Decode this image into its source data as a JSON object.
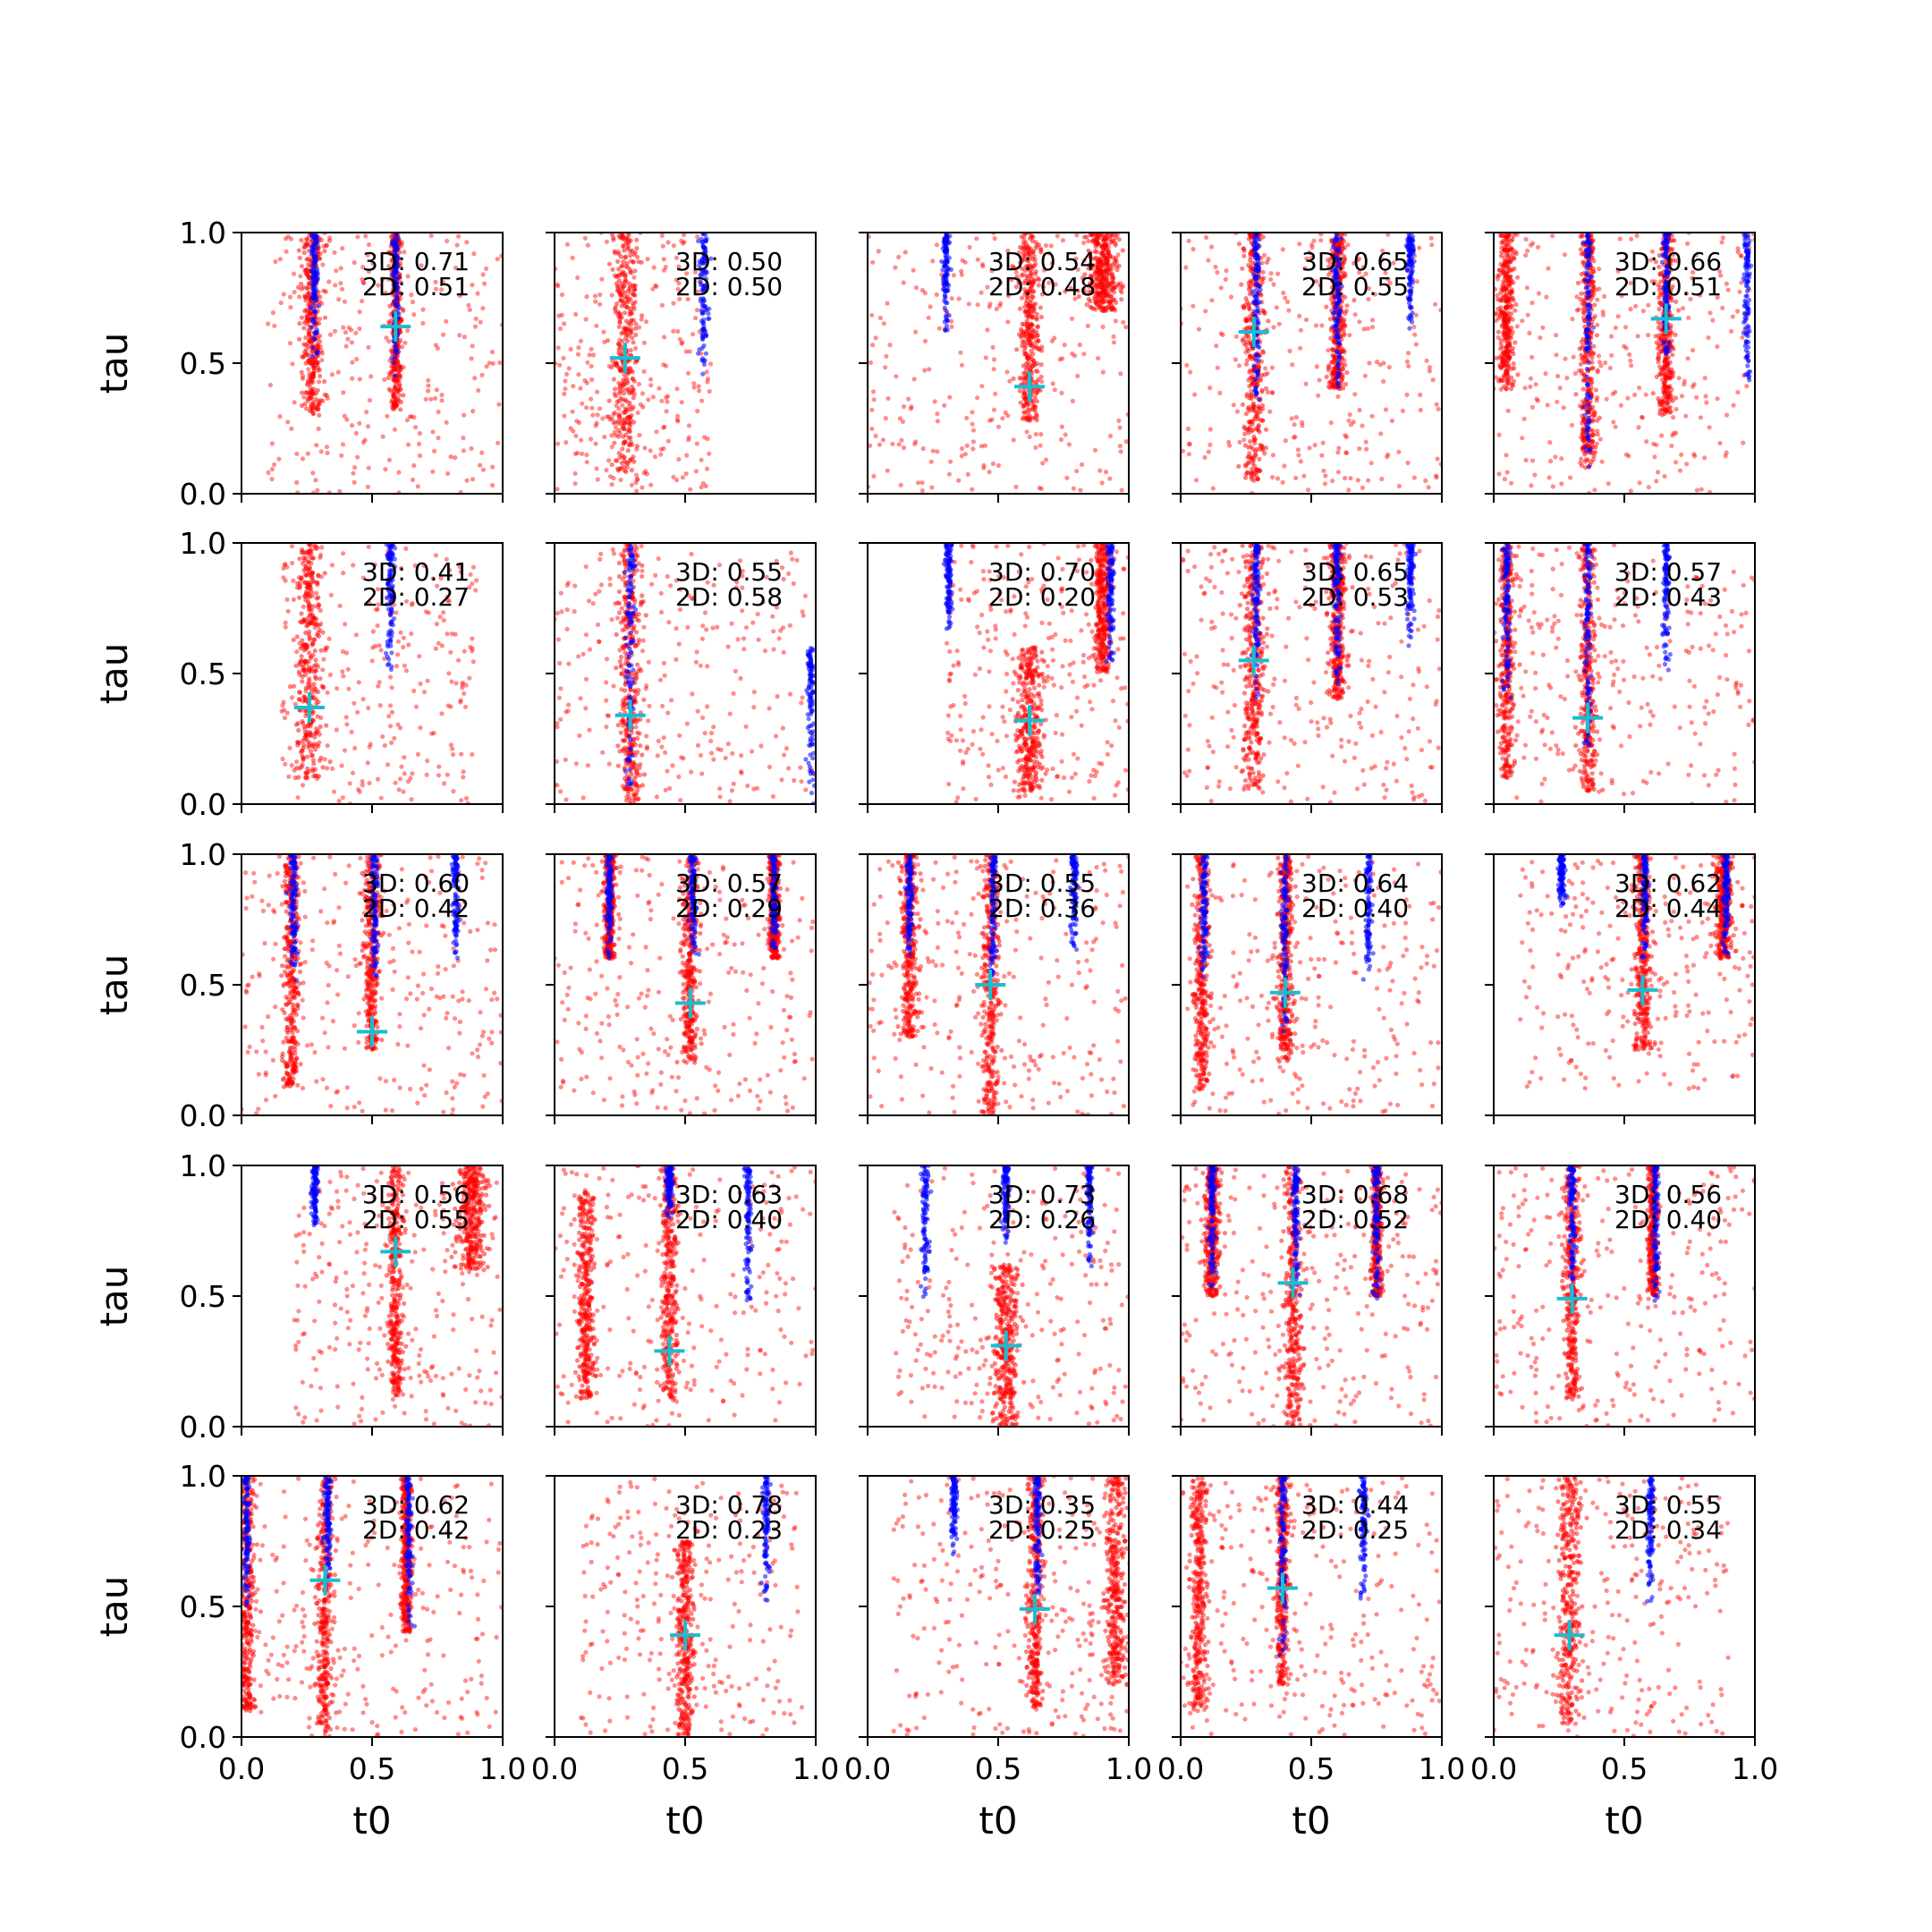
{
  "chart_data": {
    "type": "scatter",
    "layout": {
      "rows": 5,
      "cols": 5,
      "sharex": true,
      "sharey": true
    },
    "xlabel": "t0",
    "ylabel": "tau",
    "xlim": [
      0,
      1
    ],
    "ylim": [
      0,
      1
    ],
    "x_ticks": [
      "0.0",
      "0.5",
      "1.0"
    ],
    "y_ticks": [
      "0.0",
      "0.5",
      "1.0"
    ],
    "colors": {
      "samples_3d": "#0000ff",
      "samples_2d": "#ff0000",
      "truth_marker": "#17becf"
    },
    "marker": "+",
    "grid": false,
    "panels": [
      {
        "annot_3d": "3D: 0.71",
        "annot_2d": "2D: 0.51",
        "truth": [
          0.59,
          0.64
        ],
        "red_cols": [
          [
            0.27,
            0.04,
            0.3,
            1.0
          ],
          [
            0.59,
            0.02,
            0.32,
            1.0
          ]
        ],
        "blue_cols": [
          [
            0.28,
            0.012,
            0.5,
            1.0
          ],
          [
            0.59,
            0.012,
            0.45,
            1.0
          ]
        ],
        "red_scatter_region": [
          0.1,
          1.0,
          0.0,
          1.0
        ]
      },
      {
        "annot_3d": "3D: 0.50",
        "annot_2d": "2D: 0.50",
        "truth": [
          0.27,
          0.52
        ],
        "red_cols": [
          [
            0.27,
            0.05,
            0.08,
            1.0
          ]
        ],
        "blue_cols": [
          [
            0.57,
            0.015,
            0.45,
            1.0
          ]
        ],
        "red_scatter_region": [
          0.0,
          0.6,
          0.0,
          1.0
        ]
      },
      {
        "annot_3d": "3D: 0.54",
        "annot_2d": "2D: 0.48",
        "truth": [
          0.62,
          0.41
        ],
        "red_cols": [
          [
            0.62,
            0.04,
            0.28,
            1.0
          ],
          [
            0.9,
            0.06,
            0.7,
            1.0
          ]
        ],
        "blue_cols": [
          [
            0.3,
            0.012,
            0.6,
            1.0
          ]
        ],
        "red_scatter_region": [
          0.0,
          1.0,
          0.0,
          1.0
        ]
      },
      {
        "annot_3d": "3D: 0.65",
        "annot_2d": "2D: 0.55",
        "truth": [
          0.28,
          0.62
        ],
        "red_cols": [
          [
            0.28,
            0.04,
            0.05,
            1.0
          ],
          [
            0.6,
            0.03,
            0.4,
            1.0
          ]
        ],
        "blue_cols": [
          [
            0.29,
            0.012,
            0.3,
            1.0
          ],
          [
            0.6,
            0.015,
            0.35,
            1.0
          ],
          [
            0.88,
            0.012,
            0.6,
            1.0
          ]
        ],
        "red_scatter_region": [
          0.0,
          1.0,
          0.0,
          1.0
        ]
      },
      {
        "annot_3d": "3D: 0.66",
        "annot_2d": "2D: 0.51",
        "truth": [
          0.66,
          0.67
        ],
        "red_cols": [
          [
            0.36,
            0.03,
            0.1,
            1.0
          ],
          [
            0.66,
            0.03,
            0.3,
            1.0
          ],
          [
            0.05,
            0.03,
            0.4,
            1.0
          ]
        ],
        "blue_cols": [
          [
            0.36,
            0.012,
            0.1,
            1.0
          ],
          [
            0.66,
            0.012,
            0.5,
            1.0
          ],
          [
            0.97,
            0.012,
            0.4,
            1.0
          ]
        ],
        "red_scatter_region": [
          0.0,
          1.0,
          0.0,
          1.0
        ]
      },
      {
        "annot_3d": "3D: 0.41",
        "annot_2d": "2D: 0.27",
        "truth": [
          0.26,
          0.37
        ],
        "red_cols": [
          [
            0.26,
            0.05,
            0.1,
            1.0
          ]
        ],
        "blue_cols": [
          [
            0.57,
            0.015,
            0.5,
            1.0
          ]
        ],
        "red_scatter_region": [
          0.15,
          0.9,
          0.0,
          1.0
        ]
      },
      {
        "annot_3d": "3D: 0.55",
        "annot_2d": "2D: 0.58",
        "truth": [
          0.29,
          0.34
        ],
        "red_cols": [
          [
            0.29,
            0.04,
            0.0,
            1.0
          ]
        ],
        "blue_cols": [
          [
            0.29,
            0.015,
            0.0,
            1.0
          ],
          [
            0.98,
            0.012,
            0.0,
            0.6
          ]
        ],
        "red_scatter_region": [
          0.0,
          1.0,
          0.0,
          1.0
        ]
      },
      {
        "annot_3d": "3D: 0.70",
        "annot_2d": "2D: 0.20",
        "truth": [
          0.62,
          0.32
        ],
        "red_cols": [
          [
            0.62,
            0.05,
            0.05,
            0.6
          ],
          [
            0.9,
            0.03,
            0.5,
            1.0
          ]
        ],
        "blue_cols": [
          [
            0.31,
            0.012,
            0.65,
            1.0
          ],
          [
            0.93,
            0.012,
            0.5,
            1.0
          ]
        ],
        "red_scatter_region": [
          0.3,
          1.0,
          0.0,
          1.0
        ]
      },
      {
        "annot_3d": "3D: 0.65",
        "annot_2d": "2D: 0.53",
        "truth": [
          0.28,
          0.55
        ],
        "red_cols": [
          [
            0.28,
            0.04,
            0.05,
            1.0
          ],
          [
            0.6,
            0.03,
            0.4,
            1.0
          ]
        ],
        "blue_cols": [
          [
            0.29,
            0.012,
            0.4,
            1.0
          ],
          [
            0.6,
            0.015,
            0.45,
            1.0
          ],
          [
            0.88,
            0.012,
            0.6,
            1.0
          ]
        ],
        "red_scatter_region": [
          0.0,
          1.0,
          0.0,
          1.0
        ]
      },
      {
        "annot_3d": "3D: 0.57",
        "annot_2d": "2D: 0.43",
        "truth": [
          0.36,
          0.33
        ],
        "red_cols": [
          [
            0.36,
            0.03,
            0.05,
            1.0
          ],
          [
            0.05,
            0.03,
            0.1,
            1.0
          ]
        ],
        "blue_cols": [
          [
            0.36,
            0.012,
            0.2,
            1.0
          ],
          [
            0.66,
            0.012,
            0.5,
            1.0
          ],
          [
            0.05,
            0.012,
            0.4,
            1.0
          ]
        ],
        "red_scatter_region": [
          0.0,
          1.0,
          0.0,
          1.0
        ]
      },
      {
        "annot_3d": "3D: 0.60",
        "annot_2d": "2D: 0.42",
        "truth": [
          0.5,
          0.32
        ],
        "red_cols": [
          [
            0.19,
            0.03,
            0.1,
            1.0
          ],
          [
            0.5,
            0.03,
            0.25,
            1.0
          ]
        ],
        "blue_cols": [
          [
            0.2,
            0.012,
            0.5,
            1.0
          ],
          [
            0.51,
            0.012,
            0.5,
            1.0
          ],
          [
            0.82,
            0.012,
            0.6,
            1.0
          ]
        ],
        "red_scatter_region": [
          0.0,
          1.0,
          0.0,
          1.0
        ]
      },
      {
        "annot_3d": "3D: 0.57",
        "annot_2d": "2D: 0.29",
        "truth": [
          0.52,
          0.43
        ],
        "red_cols": [
          [
            0.52,
            0.03,
            0.2,
            1.0
          ],
          [
            0.21,
            0.02,
            0.6,
            1.0
          ],
          [
            0.84,
            0.02,
            0.6,
            1.0
          ]
        ],
        "blue_cols": [
          [
            0.21,
            0.012,
            0.6,
            1.0
          ],
          [
            0.53,
            0.012,
            0.6,
            1.0
          ],
          [
            0.84,
            0.012,
            0.6,
            1.0
          ]
        ],
        "red_scatter_region": [
          0.0,
          1.0,
          0.0,
          1.0
        ]
      },
      {
        "annot_3d": "3D: 0.55",
        "annot_2d": "2D: 0.36",
        "truth": [
          0.47,
          0.5
        ],
        "red_cols": [
          [
            0.47,
            0.03,
            0.0,
            1.0
          ],
          [
            0.16,
            0.03,
            0.3,
            1.0
          ]
        ],
        "blue_cols": [
          [
            0.16,
            0.012,
            0.6,
            1.0
          ],
          [
            0.48,
            0.012,
            0.5,
            1.0
          ],
          [
            0.79,
            0.012,
            0.6,
            1.0
          ]
        ],
        "red_scatter_region": [
          0.0,
          1.0,
          0.0,
          1.0
        ]
      },
      {
        "annot_3d": "3D: 0.64",
        "annot_2d": "2D: 0.40",
        "truth": [
          0.4,
          0.47
        ],
        "red_cols": [
          [
            0.08,
            0.03,
            0.1,
            1.0
          ],
          [
            0.4,
            0.03,
            0.2,
            1.0
          ]
        ],
        "blue_cols": [
          [
            0.09,
            0.012,
            0.5,
            1.0
          ],
          [
            0.4,
            0.012,
            0.3,
            1.0
          ],
          [
            0.72,
            0.012,
            0.5,
            1.0
          ]
        ],
        "red_scatter_region": [
          0.0,
          1.0,
          0.0,
          1.0
        ]
      },
      {
        "annot_3d": "3D: 0.62",
        "annot_2d": "2D: 0.44",
        "truth": [
          0.57,
          0.48
        ],
        "red_cols": [
          [
            0.57,
            0.03,
            0.25,
            1.0
          ],
          [
            0.88,
            0.03,
            0.6,
            1.0
          ]
        ],
        "blue_cols": [
          [
            0.26,
            0.012,
            0.8,
            1.0
          ],
          [
            0.58,
            0.012,
            0.6,
            1.0
          ],
          [
            0.89,
            0.012,
            0.6,
            1.0
          ]
        ],
        "red_scatter_region": [
          0.1,
          1.0,
          0.1,
          1.0
        ]
      },
      {
        "annot_3d": "3D: 0.56",
        "annot_2d": "2D: 0.55",
        "truth": [
          0.59,
          0.67
        ],
        "red_cols": [
          [
            0.59,
            0.025,
            0.12,
            1.0
          ],
          [
            0.88,
            0.05,
            0.6,
            1.0
          ]
        ],
        "blue_cols": [
          [
            0.28,
            0.012,
            0.75,
            1.0
          ]
        ],
        "red_scatter_region": [
          0.2,
          1.0,
          0.0,
          1.0
        ]
      },
      {
        "annot_3d": "3D: 0.63",
        "annot_2d": "2D: 0.40",
        "truth": [
          0.44,
          0.29
        ],
        "red_cols": [
          [
            0.44,
            0.03,
            0.1,
            1.0
          ],
          [
            0.12,
            0.03,
            0.1,
            0.9
          ]
        ],
        "blue_cols": [
          [
            0.74,
            0.012,
            0.45,
            1.0
          ],
          [
            0.44,
            0.012,
            0.8,
            1.0
          ]
        ],
        "red_scatter_region": [
          0.0,
          1.0,
          0.0,
          1.0
        ]
      },
      {
        "annot_3d": "3D: 0.73",
        "annot_2d": "2D: 0.26",
        "truth": [
          0.53,
          0.31
        ],
        "red_cols": [
          [
            0.53,
            0.05,
            0.0,
            0.62
          ]
        ],
        "blue_cols": [
          [
            0.22,
            0.012,
            0.45,
            1.0
          ],
          [
            0.53,
            0.012,
            0.7,
            1.0
          ],
          [
            0.85,
            0.012,
            0.6,
            1.0
          ]
        ],
        "red_scatter_region": [
          0.1,
          1.0,
          0.0,
          1.0
        ]
      },
      {
        "annot_3d": "3D: 0.68",
        "annot_2d": "2D: 0.52",
        "truth": [
          0.43,
          0.55
        ],
        "red_cols": [
          [
            0.43,
            0.035,
            0.0,
            1.0
          ],
          [
            0.12,
            0.03,
            0.5,
            1.0
          ],
          [
            0.75,
            0.02,
            0.5,
            1.0
          ]
        ],
        "blue_cols": [
          [
            0.44,
            0.012,
            0.5,
            1.0
          ],
          [
            0.75,
            0.012,
            0.45,
            1.0
          ],
          [
            0.12,
            0.012,
            0.5,
            1.0
          ]
        ],
        "red_scatter_region": [
          0.0,
          1.0,
          0.0,
          1.0
        ]
      },
      {
        "annot_3d": "3D: 0.56",
        "annot_2d": "2D: 0.40",
        "truth": [
          0.3,
          0.49
        ],
        "red_cols": [
          [
            0.3,
            0.03,
            0.1,
            1.0
          ],
          [
            0.61,
            0.02,
            0.5,
            1.0
          ]
        ],
        "blue_cols": [
          [
            0.3,
            0.012,
            0.5,
            1.0
          ],
          [
            0.62,
            0.012,
            0.45,
            1.0
          ]
        ],
        "red_scatter_region": [
          0.0,
          1.0,
          0.0,
          1.0
        ]
      },
      {
        "annot_3d": "3D: 0.62",
        "annot_2d": "2D: 0.42",
        "truth": [
          0.32,
          0.6
        ],
        "red_cols": [
          [
            0.32,
            0.03,
            0.0,
            1.0
          ],
          [
            0.02,
            0.03,
            0.1,
            1.0
          ],
          [
            0.63,
            0.02,
            0.4,
            1.0
          ]
        ],
        "blue_cols": [
          [
            0.33,
            0.012,
            0.6,
            1.0
          ],
          [
            0.64,
            0.012,
            0.4,
            1.0
          ],
          [
            0.02,
            0.012,
            0.5,
            1.0
          ]
        ],
        "red_scatter_region": [
          0.0,
          1.0,
          0.0,
          1.0
        ]
      },
      {
        "annot_3d": "3D: 0.78",
        "annot_2d": "2D: 0.23",
        "truth": [
          0.5,
          0.39
        ],
        "red_cols": [
          [
            0.5,
            0.03,
            0.0,
            0.75
          ]
        ],
        "blue_cols": [
          [
            0.81,
            0.012,
            0.5,
            1.0
          ]
        ],
        "red_scatter_region": [
          0.1,
          0.95,
          0.0,
          1.0
        ]
      },
      {
        "annot_3d": "3D: 0.35",
        "annot_2d": "2D: 0.25",
        "truth": [
          0.64,
          0.49
        ],
        "red_cols": [
          [
            0.64,
            0.03,
            0.1,
            1.0
          ],
          [
            0.95,
            0.04,
            0.2,
            1.0
          ]
        ],
        "blue_cols": [
          [
            0.33,
            0.012,
            0.7,
            1.0
          ],
          [
            0.65,
            0.012,
            0.5,
            1.0
          ]
        ],
        "red_scatter_region": [
          0.1,
          1.0,
          0.0,
          1.0
        ]
      },
      {
        "annot_3d": "3D: 0.44",
        "annot_2d": "2D: 0.25",
        "truth": [
          0.39,
          0.57
        ],
        "red_cols": [
          [
            0.07,
            0.03,
            0.1,
            1.0
          ],
          [
            0.39,
            0.025,
            0.2,
            1.0
          ]
        ],
        "blue_cols": [
          [
            0.39,
            0.012,
            0.3,
            1.0
          ],
          [
            0.7,
            0.012,
            0.5,
            1.0
          ]
        ],
        "red_scatter_region": [
          0.0,
          1.0,
          0.0,
          1.0
        ]
      },
      {
        "annot_3d": "3D: 0.55",
        "annot_2d": "2D: 0.34",
        "truth": [
          0.29,
          0.39
        ],
        "red_cols": [
          [
            0.29,
            0.04,
            0.05,
            1.0
          ]
        ],
        "blue_cols": [
          [
            0.6,
            0.012,
            0.5,
            1.0
          ]
        ],
        "red_scatter_region": [
          0.0,
          0.9,
          0.0,
          1.0
        ]
      }
    ]
  }
}
